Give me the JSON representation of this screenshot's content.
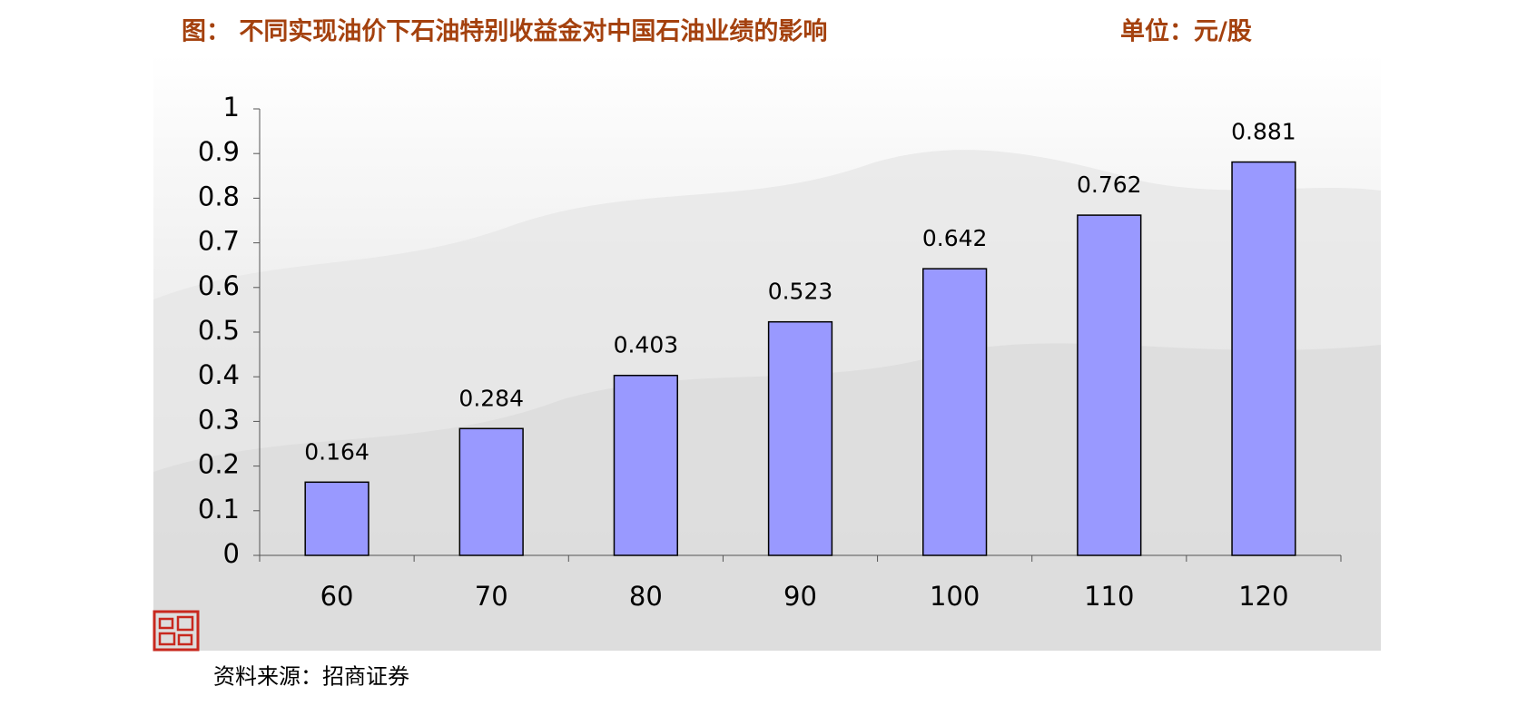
{
  "chart_data": {
    "type": "bar",
    "title": "图： 不同实现油价下石油特别收益金对中国石油业绩的影响",
    "unit_label": "单位：元/股",
    "categories": [
      "60",
      "70",
      "80",
      "90",
      "100",
      "110",
      "120"
    ],
    "values": [
      0.164,
      0.284,
      0.403,
      0.523,
      0.642,
      0.762,
      0.881
    ],
    "color": "#9999ff",
    "ylim": [
      0,
      1
    ],
    "yticks": [
      0,
      0.1,
      0.2,
      0.3,
      0.4,
      0.5,
      0.6,
      0.7,
      0.8,
      0.9,
      1
    ],
    "source": "资料来源：招商证券"
  }
}
